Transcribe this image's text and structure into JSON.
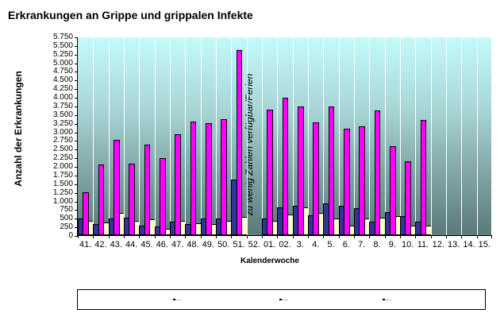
{
  "chart_data": {
    "type": "bar",
    "title": "Erkrankungen an Grippe und grippalen Infekte",
    "xlabel": "Kalenderwoche",
    "ylabel": "Anzahl der Erkrankungen",
    "ylim": [
      0,
      5750
    ],
    "yticks": [
      "0",
      "250",
      "500",
      "750",
      "1.000",
      "1.250",
      "1.500",
      "1.750",
      "2.000",
      "2.250",
      "2.500",
      "2.750",
      "3.000",
      "3.250",
      "3.500",
      "3.750",
      "4.000",
      "4.250",
      "4.500",
      "4.750",
      "5.000",
      "5.250",
      "5.500",
      "5.750"
    ],
    "categories": [
      "41.",
      "42.",
      "43.",
      "44.",
      "45.",
      "46.",
      "47.",
      "48.",
      "49.",
      "50.",
      "51.",
      "52.",
      "01.",
      "02.",
      "3.",
      "4.",
      "5.",
      "6.",
      "7.",
      "8.",
      "9.",
      "10.",
      "11.",
      "12.",
      "13.",
      "14.",
      "15."
    ],
    "series": [
      {
        "name": "",
        "color": "#333399",
        "values": [
          475,
          325,
          475,
          500,
          275,
          250,
          400,
          325,
          475,
          475,
          1600,
          null,
          475,
          800,
          850,
          575,
          925,
          850,
          775,
          400,
          675,
          550,
          400,
          null,
          null,
          null,
          null
        ]
      },
      {
        "name": "",
        "color": "#ff00ff",
        "values": [
          1250,
          2050,
          2750,
          2075,
          2625,
          2225,
          2925,
          3300,
          3250,
          3350,
          5350,
          null,
          3625,
          3975,
          3725,
          3275,
          3725,
          3075,
          3150,
          3600,
          2575,
          2150,
          3325,
          null,
          null,
          null,
          null
        ]
      },
      {
        "name": "",
        "color": "#ffffcc",
        "values": [
          425,
          375,
          650,
          425,
          450,
          175,
          425,
          350,
          325,
          425,
          525,
          null,
          425,
          600,
          800,
          650,
          475,
          275,
          475,
          500,
          550,
          275,
          275,
          null,
          null,
          null,
          null
        ]
      }
    ],
    "annotations": [
      {
        "text": "zu wenig Zahlen verfügbar/Ferien",
        "at": "52.",
        "rotation": -90
      }
    ],
    "grid": "vertical",
    "legend_position": "bottom",
    "legend_entries": [
      "",
      "",
      ""
    ]
  }
}
